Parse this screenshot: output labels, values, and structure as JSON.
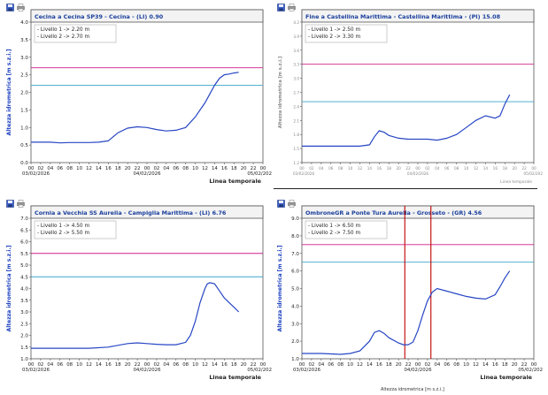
{
  "colors": {
    "frame": "#555555",
    "title_text": "#1a3f9c",
    "axis_label": "#1a3fbf",
    "level1": "#3aa6c9",
    "level2": "#d01f8a",
    "series": "#2746c4",
    "marker": "#c00000",
    "blurred_text": "#888888"
  },
  "toolbar_icons": [
    "save-icon",
    "print-icon"
  ],
  "charts": [
    {
      "id": "cecina",
      "title": "Cecina a Cecina SP39 - Cecina -  (LI) 0.90",
      "legend": [
        "- Livello 1 -> 2.20 m",
        "- Livello 2 -> 2.70 m"
      ],
      "ylabel": "Altezza idrometrica [m s.z.i.]",
      "xlabel": "Linea temporale",
      "date_left": "03/02/2026",
      "date_mid": "04/02/2026",
      "date_right": "05/02/202",
      "blurred": false,
      "chart_data": {
        "type": "line",
        "ylim": [
          0,
          4
        ],
        "yticks": [
          "0.0",
          "0.5",
          "1.0",
          "1.5",
          "2.0",
          "2.5",
          "3.0",
          "3.5",
          "4.0"
        ],
        "xlim": [
          0,
          48
        ],
        "xticks": [
          "00",
          "02",
          "04",
          "06",
          "08",
          "10",
          "12",
          "14",
          "16",
          "18",
          "20",
          "22",
          "00",
          "02",
          "04",
          "06",
          "08",
          "10",
          "12",
          "14",
          "16",
          "18",
          "20",
          "22",
          "00"
        ],
        "levels": [
          2.2,
          2.7
        ],
        "series": [
          {
            "name": "Altezza idrometrica",
            "x": [
              0,
              4,
              6,
              8,
              12,
              14,
              16,
              18,
              20,
              22,
              24,
              26,
              28,
              30,
              32,
              34,
              36,
              38,
              39,
              40,
              41,
              42,
              43
            ],
            "values": [
              0.58,
              0.58,
              0.56,
              0.57,
              0.57,
              0.58,
              0.62,
              0.85,
              0.98,
              1.02,
              1.0,
              0.94,
              0.9,
              0.92,
              1.0,
              1.3,
              1.7,
              2.2,
              2.4,
              2.5,
              2.52,
              2.55,
              2.57
            ]
          }
        ],
        "markers": []
      }
    },
    {
      "id": "fine",
      "title": "Fine a Castellina Marittima - Castellina Marittima -  (PI) 15.08",
      "legend": [
        "- Livello 1 -> 2.50 m",
        "- Livello 2 -> 3.30 m"
      ],
      "ylabel": "Altezza idrometrica [m s.z.i.]",
      "xlabel": "Linea temporale",
      "date_left": "03/02/2026",
      "date_mid": "04/02/2026",
      "date_right": "05/02/202",
      "blurred": true,
      "chart_data": {
        "type": "line",
        "ylim": [
          1.2,
          4.2
        ],
        "yticks": [
          "1.2",
          "1.5",
          "1.8",
          "2.1",
          "2.4",
          "2.7",
          "3.0",
          "3.3",
          "3.6",
          "3.9",
          "4.2"
        ],
        "xlim": [
          0,
          48
        ],
        "xticks": [
          "00",
          "02",
          "04",
          "06",
          "08",
          "10",
          "12",
          "14",
          "16",
          "18",
          "20",
          "22",
          "00",
          "02",
          "04",
          "06",
          "08",
          "10",
          "12",
          "14",
          "16",
          "18",
          "20",
          "22",
          "00"
        ],
        "levels": [
          2.5,
          3.3
        ],
        "series": [
          {
            "name": "Altezza idrometrica",
            "x": [
              0,
              4,
              8,
              12,
              14,
              15,
              16,
              17,
              18,
              20,
              22,
              24,
              26,
              28,
              30,
              32,
              34,
              36,
              38,
              40,
              41,
              42,
              43
            ],
            "values": [
              1.55,
              1.55,
              1.55,
              1.55,
              1.58,
              1.75,
              1.88,
              1.85,
              1.78,
              1.72,
              1.7,
              1.7,
              1.7,
              1.68,
              1.72,
              1.8,
              1.95,
              2.1,
              2.2,
              2.15,
              2.2,
              2.45,
              2.65
            ]
          }
        ],
        "markers": []
      }
    },
    {
      "id": "cornia",
      "title": "Cornia a Vecchia SS Aurelia - Campiglia Marittima -  (LI) 6.76",
      "legend": [
        "- Livello 1 -> 4.50 m",
        "- Livello 2 -> 5.50 m"
      ],
      "ylabel": "Altezza idrometrica [m s.z.i.]",
      "xlabel": "Linea temporale",
      "date_left": "03/02/2026",
      "date_mid": "04/02/2026",
      "date_right": "05/02/202",
      "blurred": false,
      "chart_data": {
        "type": "line",
        "ylim": [
          1,
          7
        ],
        "yticks": [
          "1.0",
          "1.5",
          "2.0",
          "2.5",
          "3.0",
          "3.5",
          "4.0",
          "4.5",
          "5.0",
          "5.5",
          "6.0",
          "6.5",
          "7.0"
        ],
        "xlim": [
          0,
          48
        ],
        "xticks": [
          "00",
          "02",
          "04",
          "06",
          "08",
          "10",
          "12",
          "14",
          "16",
          "18",
          "20",
          "22",
          "00",
          "02",
          "04",
          "06",
          "08",
          "10",
          "12",
          "14",
          "16",
          "18",
          "20",
          "22",
          "00"
        ],
        "levels": [
          4.5,
          5.5
        ],
        "series": [
          {
            "name": "Altezza idrometrica",
            "x": [
              0,
              4,
              8,
              12,
              16,
              20,
              22,
              24,
              26,
              28,
              30,
              32,
              33,
              34,
              35,
              36,
              36.5,
              37,
              38,
              39,
              40,
              41,
              42,
              43
            ],
            "values": [
              1.45,
              1.45,
              1.45,
              1.45,
              1.5,
              1.65,
              1.68,
              1.65,
              1.62,
              1.6,
              1.6,
              1.7,
              2.0,
              2.6,
              3.4,
              4.0,
              4.2,
              4.25,
              4.2,
              3.9,
              3.6,
              3.4,
              3.2,
              3.0
            ]
          }
        ],
        "markers": []
      }
    },
    {
      "id": "ombrone",
      "title": "OmbroneGR a Ponte Tura Aurelia - Grosseto -  (GR) 4.56",
      "legend": [
        "- Livello 1 -> 6.50 m",
        "- Livello 2 -> 7.50 m"
      ],
      "ylabel": "Altezza idrometrica [m s.z.i.]",
      "xlabel": "Linea temporale",
      "date_left": "03/02/2026",
      "date_mid": "04/02/2026",
      "date_right": "05/02/202",
      "blurred": false,
      "chart_data": {
        "type": "line",
        "ylim": [
          1,
          9
        ],
        "yticks": [
          "1.0",
          "2.0",
          "3.0",
          "4.0",
          "5.0",
          "6.0",
          "7.0",
          "8.0",
          "9.0"
        ],
        "xlim": [
          0,
          48
        ],
        "xticks": [
          "00",
          "02",
          "04",
          "06",
          "08",
          "10",
          "12",
          "14",
          "16",
          "18",
          "20",
          "22",
          "00",
          "02",
          "04",
          "06",
          "08",
          "10",
          "12",
          "14",
          "16",
          "18",
          "20",
          "22",
          "00"
        ],
        "levels": [
          6.5,
          7.5
        ],
        "series": [
          {
            "name": "Altezza idrometrica",
            "x": [
              0,
              4,
              8,
              10,
              12,
              14,
              15,
              16,
              17,
              18,
              20,
              21,
              22,
              23,
              24,
              25,
              26,
              27,
              28,
              30,
              32,
              34,
              36,
              38,
              40,
              41,
              42,
              43
            ],
            "values": [
              1.3,
              1.3,
              1.25,
              1.3,
              1.45,
              2.0,
              2.5,
              2.6,
              2.45,
              2.2,
              1.9,
              1.8,
              1.8,
              1.95,
              2.6,
              3.5,
              4.3,
              4.8,
              5.0,
              4.85,
              4.7,
              4.55,
              4.45,
              4.4,
              4.65,
              5.1,
              5.6,
              6.0
            ]
          }
        ],
        "markers": [
          21.3,
          26.7
        ]
      }
    }
  ],
  "footer_note": "Altezza idrometrica [m s.z.i.]"
}
